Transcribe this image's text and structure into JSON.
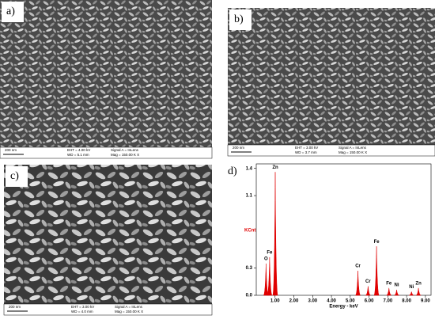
{
  "panels": [
    {
      "label": "a)",
      "scale_bar": "200 nm",
      "info": [
        "EHT = 4.00 kV",
        "WD = 5.1 mm",
        "Signal A = InLens",
        "Mag = 150.00 K X"
      ]
    },
    {
      "label": "b)",
      "scale_bar": "200 nm",
      "info": [
        "EHT = 3.00 kV",
        "WD = 3.7 mm",
        "Signal A = InLens",
        "Mag = 150.00 K X"
      ]
    },
    {
      "label": "c)",
      "scale_bar": "200 nm",
      "info": [
        "EHT = 3.00 kV",
        "WD = 4.0 mm",
        "Signal A = InLens",
        "Mag = 150.00 K X"
      ]
    }
  ],
  "chart_data": {
    "type": "spectrum",
    "panel_label": "d)",
    "xlabel": "Energy - keV",
    "ylabel": "KCnt",
    "color": "#e00000",
    "x": [
      0.52,
      0.71,
      1.01,
      5.41,
      5.95,
      6.4,
      7.06,
      7.47,
      8.26,
      8.63
    ],
    "values": [
      0.35,
      0.42,
      1.36,
      0.27,
      0.1,
      0.54,
      0.08,
      0.06,
      0.04,
      0.08
    ],
    "point_labels": [
      "O",
      "Fe",
      "Zn",
      "Cr",
      "Cr",
      "Fe",
      "Fe",
      "Ni",
      "Ni",
      "Zn"
    ],
    "xlim": [
      0,
      9.3
    ],
    "ylim": [
      0,
      1.45
    ],
    "xticks": [
      {
        "value": 1,
        "label": "1.00"
      },
      {
        "value": 2,
        "label": "2.00"
      },
      {
        "value": 3,
        "label": "3.00"
      },
      {
        "value": 4,
        "label": "4.00"
      },
      {
        "value": 5,
        "label": "5.00"
      },
      {
        "value": 6,
        "label": "6.00"
      },
      {
        "value": 7,
        "label": "7.00"
      },
      {
        "value": 8,
        "label": "8.00"
      },
      {
        "value": 9,
        "label": "9.00"
      }
    ],
    "yticks": [
      {
        "value": 0,
        "label": "0.0"
      },
      0.3,
      1.1,
      1.4
    ]
  }
}
